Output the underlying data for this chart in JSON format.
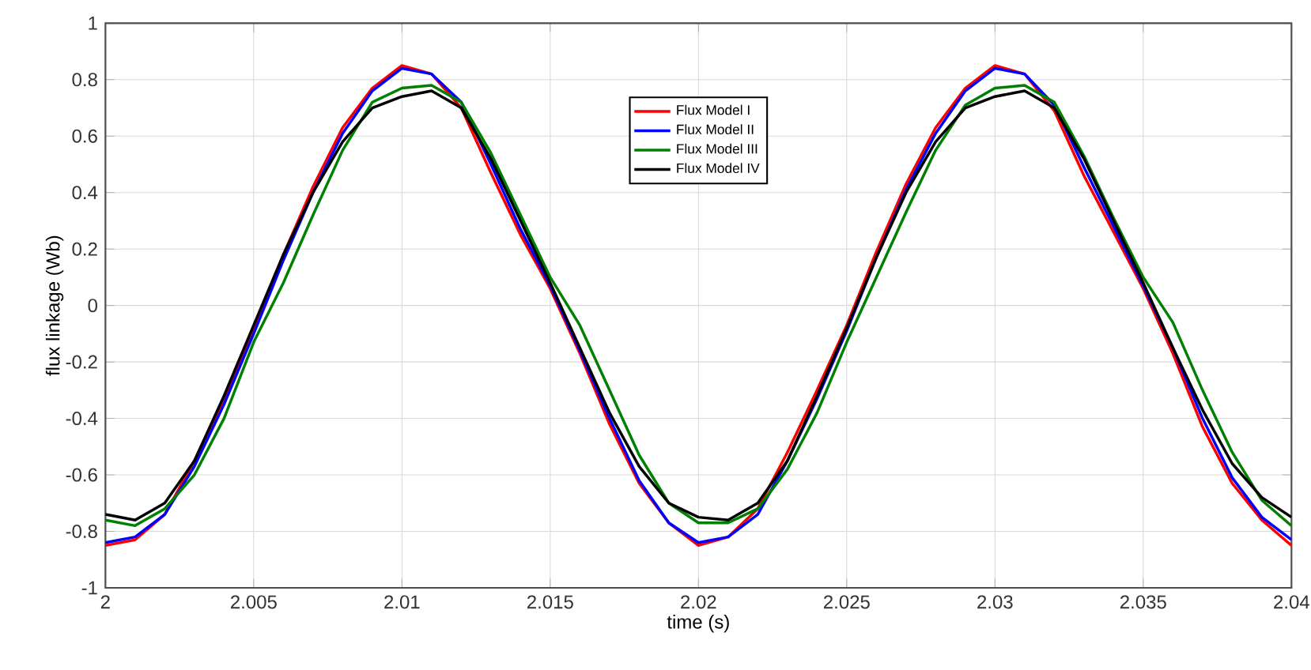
{
  "chart_data": {
    "type": "line",
    "xlabel": "time (s)",
    "ylabel": "flux linkage (Wb)",
    "x": [
      2.0,
      2.001,
      2.002,
      2.003,
      2.004,
      2.005,
      2.006,
      2.007,
      2.008,
      2.009,
      2.01,
      2.011,
      2.012,
      2.013,
      2.014,
      2.015,
      2.016,
      2.017,
      2.018,
      2.019,
      2.02,
      2.021,
      2.022,
      2.023,
      2.024,
      2.025,
      2.026,
      2.027,
      2.028,
      2.029,
      2.03,
      2.031,
      2.032,
      2.033,
      2.034,
      2.035,
      2.036,
      2.037,
      2.038,
      2.039,
      2.04
    ],
    "series": [
      {
        "name": "Flux Model I",
        "color": "#ff0000",
        "values": [
          -0.85,
          -0.83,
          -0.74,
          -0.55,
          -0.33,
          -0.08,
          0.18,
          0.42,
          0.63,
          0.77,
          0.85,
          0.82,
          0.7,
          0.47,
          0.25,
          0.06,
          -0.17,
          -0.42,
          -0.63,
          -0.77,
          -0.85,
          -0.82,
          -0.72,
          -0.52,
          -0.3,
          -0.07,
          0.19,
          0.43,
          0.63,
          0.77,
          0.85,
          0.82,
          0.69,
          0.46,
          0.26,
          0.06,
          -0.17,
          -0.43,
          -0.63,
          -0.76,
          -0.85
        ]
      },
      {
        "name": "Flux Model II",
        "color": "#0000ff",
        "values": [
          -0.84,
          -0.82,
          -0.74,
          -0.57,
          -0.35,
          -0.1,
          0.16,
          0.4,
          0.61,
          0.76,
          0.84,
          0.82,
          0.72,
          0.5,
          0.27,
          0.07,
          -0.16,
          -0.4,
          -0.62,
          -0.77,
          -0.84,
          -0.82,
          -0.74,
          -0.55,
          -0.33,
          -0.09,
          0.17,
          0.41,
          0.61,
          0.76,
          0.84,
          0.82,
          0.71,
          0.49,
          0.28,
          0.07,
          -0.15,
          -0.4,
          -0.61,
          -0.75,
          -0.83
        ]
      },
      {
        "name": "Flux Model III",
        "color": "#008000",
        "values": [
          -0.76,
          -0.78,
          -0.72,
          -0.6,
          -0.4,
          -0.13,
          0.08,
          0.32,
          0.55,
          0.72,
          0.77,
          0.78,
          0.72,
          0.54,
          0.32,
          0.1,
          -0.07,
          -0.3,
          -0.53,
          -0.7,
          -0.77,
          -0.77,
          -0.72,
          -0.58,
          -0.38,
          -0.13,
          0.1,
          0.33,
          0.55,
          0.71,
          0.77,
          0.78,
          0.72,
          0.53,
          0.31,
          0.1,
          -0.06,
          -0.3,
          -0.52,
          -0.69,
          -0.78
        ]
      },
      {
        "name": "Flux Model IV",
        "color": "#000000",
        "values": [
          -0.74,
          -0.76,
          -0.7,
          -0.55,
          -0.32,
          -0.07,
          0.18,
          0.4,
          0.58,
          0.7,
          0.74,
          0.76,
          0.7,
          0.52,
          0.3,
          0.08,
          -0.15,
          -0.38,
          -0.57,
          -0.7,
          -0.75,
          -0.76,
          -0.7,
          -0.55,
          -0.32,
          -0.08,
          0.17,
          0.4,
          0.58,
          0.7,
          0.74,
          0.76,
          0.7,
          0.52,
          0.3,
          0.08,
          -0.15,
          -0.37,
          -0.56,
          -0.68,
          -0.75
        ]
      }
    ],
    "xlim": [
      2,
      2.04
    ],
    "ylim": [
      -1,
      1
    ],
    "xticks": [
      2,
      2.005,
      2.01,
      2.015,
      2.02,
      2.025,
      2.03,
      2.035,
      2.04
    ],
    "yticks": [
      -1,
      -0.8,
      -0.6,
      -0.4,
      -0.2,
      0,
      0.2,
      0.4,
      0.6,
      0.8,
      1
    ],
    "grid": true,
    "legend": "top",
    "marker": "none",
    "line_style": "solid"
  }
}
